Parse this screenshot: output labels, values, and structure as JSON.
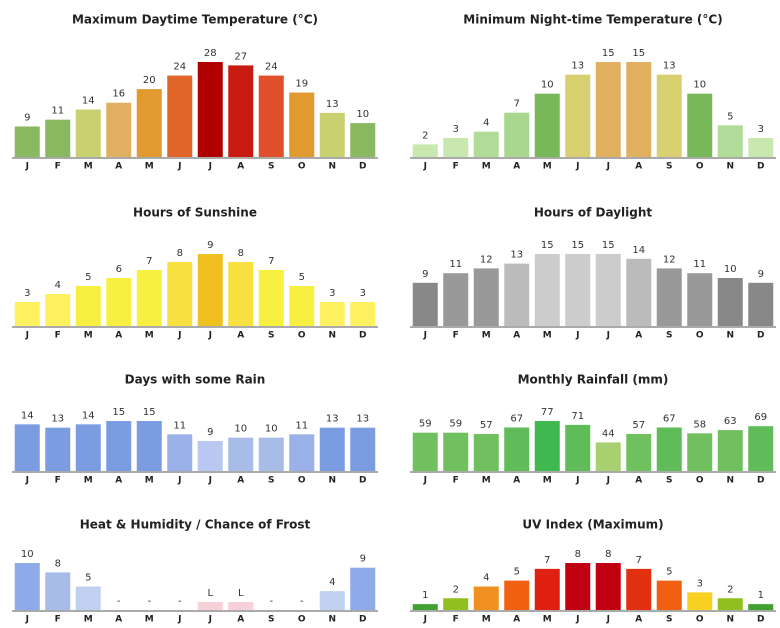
{
  "chart_data": [
    {
      "type": "bar",
      "title": "Maximum Daytime Temperature (°C)",
      "categories": [
        "J",
        "F",
        "M",
        "A",
        "M",
        "J",
        "J",
        "A",
        "S",
        "O",
        "N",
        "D"
      ],
      "values": [
        9,
        11,
        14,
        16,
        20,
        24,
        28,
        27,
        24,
        19,
        13,
        10
      ],
      "colors": [
        "#8ab860",
        "#8ab860",
        "#c8d070",
        "#e0b060",
        "#e09a30",
        "#e0662a",
        "#b00000",
        "#c81a10",
        "#e0502a",
        "#e09a30",
        "#c8d070",
        "#8ab860"
      ]
    },
    {
      "type": "bar",
      "title": "Minimum Night-time Temperature (°C)",
      "categories": [
        "J",
        "F",
        "M",
        "A",
        "M",
        "J",
        "J",
        "A",
        "S",
        "O",
        "N",
        "D"
      ],
      "values": [
        2,
        3,
        4,
        7,
        10,
        13,
        15,
        15,
        13,
        10,
        5,
        3
      ],
      "colors": [
        "#c8e8b0",
        "#c8e8b0",
        "#b0dc98",
        "#a8d890",
        "#78b858",
        "#d8d070",
        "#e0b060",
        "#e0b060",
        "#d8d070",
        "#78b858",
        "#b0dc98",
        "#c8e8b0"
      ]
    },
    {
      "type": "bar",
      "title": "Hours of Sunshine",
      "categories": [
        "J",
        "F",
        "M",
        "A",
        "M",
        "J",
        "J",
        "A",
        "S",
        "O",
        "N",
        "D"
      ],
      "values": [
        3,
        4,
        5,
        6,
        7,
        8,
        9,
        8,
        7,
        5,
        3,
        3
      ],
      "colors": [
        "#fff060",
        "#fff060",
        "#f8f040",
        "#f8f040",
        "#f8f040",
        "#f8e040",
        "#f0c020",
        "#f8e040",
        "#f8f040",
        "#f8f040",
        "#fff060",
        "#fff060"
      ]
    },
    {
      "type": "bar",
      "title": "Hours of Daylight",
      "categories": [
        "J",
        "F",
        "M",
        "A",
        "M",
        "J",
        "J",
        "A",
        "S",
        "O",
        "N",
        "D"
      ],
      "values": [
        9,
        11,
        12,
        13,
        15,
        15,
        15,
        14,
        12,
        11,
        10,
        9
      ],
      "colors": [
        "#888888",
        "#999999",
        "#999999",
        "#bbbbbb",
        "#cccccc",
        "#cccccc",
        "#cccccc",
        "#bbbbbb",
        "#999999",
        "#999999",
        "#888888",
        "#888888"
      ]
    },
    {
      "type": "bar",
      "title": "Days with some Rain",
      "categories": [
        "J",
        "F",
        "M",
        "A",
        "M",
        "J",
        "J",
        "A",
        "S",
        "O",
        "N",
        "D"
      ],
      "values": [
        14,
        13,
        14,
        15,
        15,
        11,
        9,
        10,
        10,
        11,
        13,
        13
      ],
      "colors": [
        "#7b9ce0",
        "#7b9ce0",
        "#7b9ce0",
        "#7b9ce0",
        "#7b9ce0",
        "#9ab0e8",
        "#b8c8f0",
        "#a8bce8",
        "#a8bce8",
        "#9ab0e8",
        "#7b9ce0",
        "#7b9ce0"
      ]
    },
    {
      "type": "bar",
      "title": "Monthly Rainfall (mm)",
      "categories": [
        "J",
        "F",
        "M",
        "A",
        "M",
        "J",
        "J",
        "A",
        "S",
        "O",
        "N",
        "D"
      ],
      "values": [
        59,
        59,
        57,
        67,
        77,
        71,
        44,
        57,
        67,
        58,
        63,
        69
      ],
      "colors": [
        "#70c060",
        "#70c060",
        "#70c060",
        "#60bc58",
        "#40b850",
        "#60bc58",
        "#a8d070",
        "#70c060",
        "#60bc58",
        "#70c060",
        "#70c060",
        "#60bc58"
      ]
    },
    {
      "type": "bar",
      "title": "Heat & Humidity / Chance of Frost",
      "categories": [
        "J",
        "F",
        "M",
        "A",
        "M",
        "J",
        "J",
        "A",
        "S",
        "O",
        "N",
        "D"
      ],
      "values": [
        10,
        8,
        5,
        null,
        null,
        null,
        null,
        null,
        null,
        null,
        4,
        9
      ],
      "value_labels": [
        "10",
        "8",
        "5",
        "-",
        "-",
        "-",
        "L",
        "L",
        "-",
        "-",
        "4",
        "9"
      ],
      "colors": [
        "#8eaae8",
        "#a8bce8",
        "#c0d0f0",
        null,
        null,
        null,
        "#f8d0d8",
        "#f8d0d8",
        null,
        null,
        "#c0d0f0",
        "#8eaae8"
      ]
    },
    {
      "type": "bar",
      "title": "UV Index (Maximum)",
      "categories": [
        "J",
        "F",
        "M",
        "A",
        "M",
        "J",
        "J",
        "A",
        "S",
        "O",
        "N",
        "D"
      ],
      "values": [
        1,
        2,
        4,
        5,
        7,
        8,
        8,
        7,
        5,
        3,
        2,
        1
      ],
      "colors": [
        "#40a030",
        "#90c020",
        "#f09020",
        "#f06010",
        "#e02010",
        "#c00010",
        "#c00010",
        "#e03010",
        "#f06010",
        "#f8d020",
        "#90c020",
        "#40a030"
      ]
    }
  ]
}
